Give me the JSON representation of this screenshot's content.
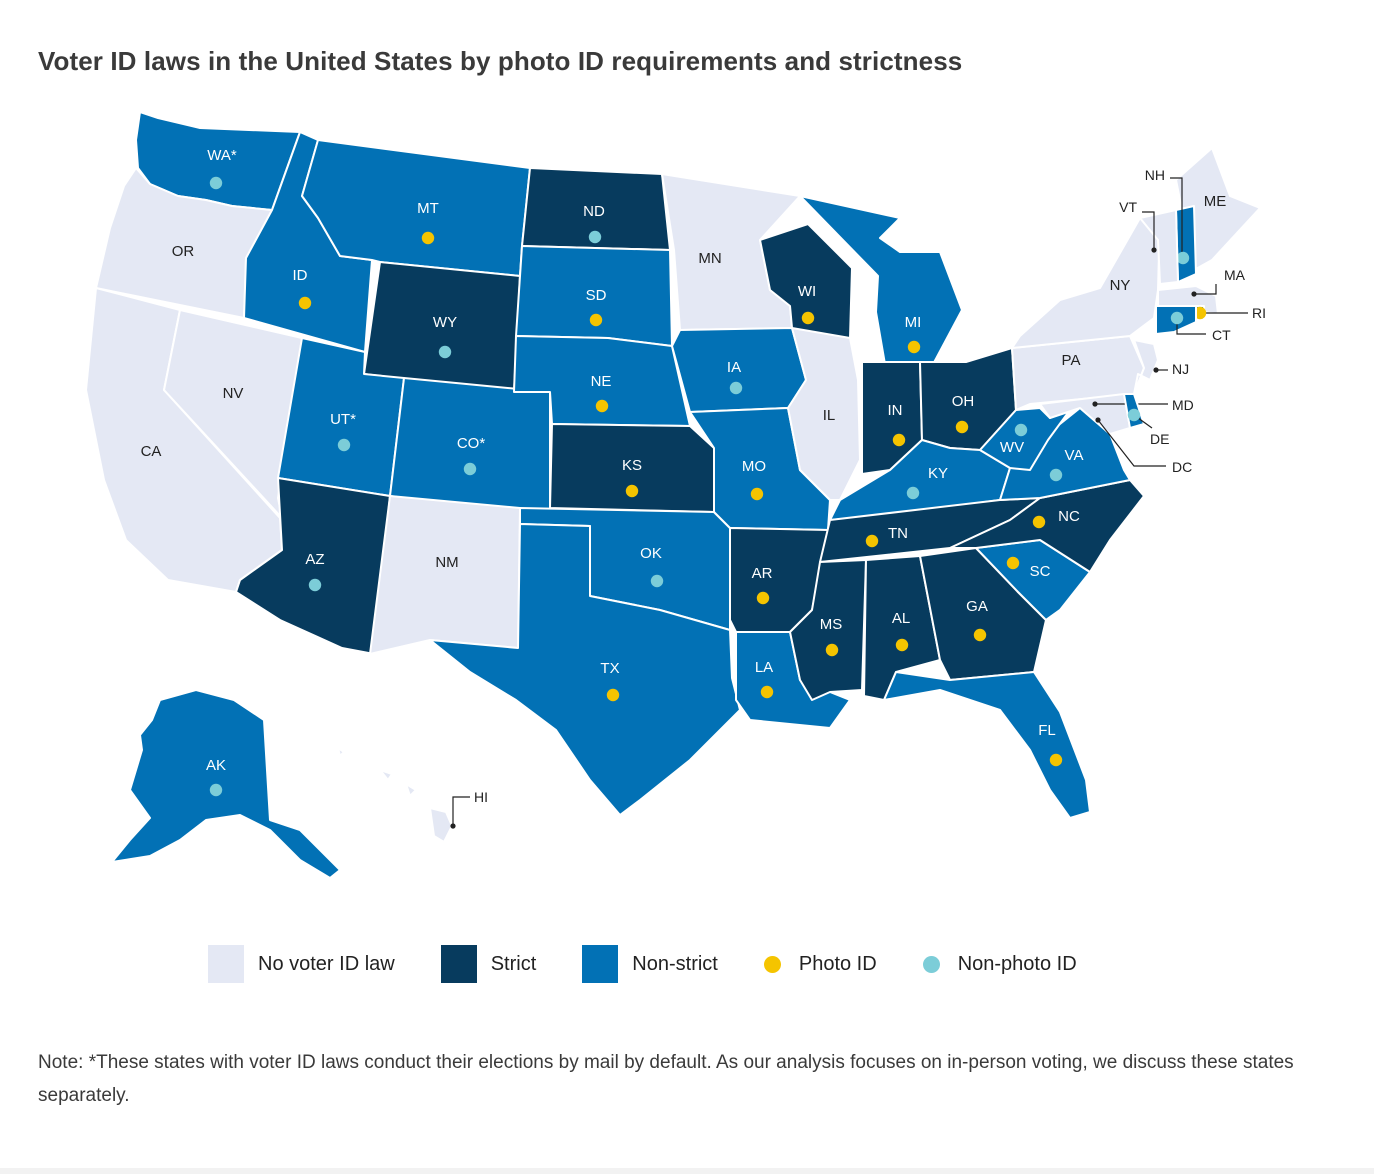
{
  "title": "Voter ID laws in the United States by photo ID requirements and strictness",
  "colors": {
    "none": "#e4e8f4",
    "strict": "#073b5e",
    "nonstrict": "#0271b5",
    "photo": "#f5c400",
    "nonphoto": "#7ccdd8"
  },
  "legend": [
    {
      "label": "No voter ID law",
      "type": "swatch",
      "key": "none"
    },
    {
      "label": "Strict",
      "type": "swatch",
      "key": "strict"
    },
    {
      "label": "Non-strict",
      "type": "swatch",
      "key": "nonstrict"
    },
    {
      "label": "Photo ID",
      "type": "dot",
      "key": "photo"
    },
    {
      "label": "Non-photo ID",
      "type": "dot",
      "key": "nonphoto"
    }
  ],
  "states": [
    {
      "abbr": "WA*",
      "law": "nonstrict",
      "id": "nonphoto"
    },
    {
      "abbr": "OR",
      "law": "none",
      "id": ""
    },
    {
      "abbr": "CA",
      "law": "none",
      "id": ""
    },
    {
      "abbr": "NV",
      "law": "none",
      "id": ""
    },
    {
      "abbr": "ID",
      "law": "nonstrict",
      "id": "photo"
    },
    {
      "abbr": "MT",
      "law": "nonstrict",
      "id": "photo"
    },
    {
      "abbr": "WY",
      "law": "strict",
      "id": "nonphoto"
    },
    {
      "abbr": "UT*",
      "law": "nonstrict",
      "id": "nonphoto"
    },
    {
      "abbr": "AZ",
      "law": "strict",
      "id": "nonphoto"
    },
    {
      "abbr": "CO*",
      "law": "nonstrict",
      "id": "nonphoto"
    },
    {
      "abbr": "NM",
      "law": "none",
      "id": ""
    },
    {
      "abbr": "ND",
      "law": "strict",
      "id": "nonphoto"
    },
    {
      "abbr": "SD",
      "law": "nonstrict",
      "id": "photo"
    },
    {
      "abbr": "NE",
      "law": "nonstrict",
      "id": "photo"
    },
    {
      "abbr": "KS",
      "law": "strict",
      "id": "photo"
    },
    {
      "abbr": "OK",
      "law": "nonstrict",
      "id": "nonphoto"
    },
    {
      "abbr": "TX",
      "law": "nonstrict",
      "id": "photo"
    },
    {
      "abbr": "MN",
      "law": "none",
      "id": ""
    },
    {
      "abbr": "IA",
      "law": "nonstrict",
      "id": "nonphoto"
    },
    {
      "abbr": "MO",
      "law": "nonstrict",
      "id": "photo"
    },
    {
      "abbr": "AR",
      "law": "strict",
      "id": "photo"
    },
    {
      "abbr": "LA",
      "law": "nonstrict",
      "id": "photo"
    },
    {
      "abbr": "WI",
      "law": "strict",
      "id": "photo"
    },
    {
      "abbr": "IL",
      "law": "none",
      "id": ""
    },
    {
      "abbr": "MI",
      "law": "nonstrict",
      "id": "photo"
    },
    {
      "abbr": "IN",
      "law": "strict",
      "id": "photo"
    },
    {
      "abbr": "OH",
      "law": "strict",
      "id": "photo"
    },
    {
      "abbr": "KY",
      "law": "nonstrict",
      "id": "nonphoto"
    },
    {
      "abbr": "TN",
      "law": "strict",
      "id": "photo"
    },
    {
      "abbr": "MS",
      "law": "strict",
      "id": "photo"
    },
    {
      "abbr": "AL",
      "law": "strict",
      "id": "photo"
    },
    {
      "abbr": "GA",
      "law": "strict",
      "id": "photo"
    },
    {
      "abbr": "FL",
      "law": "nonstrict",
      "id": "photo"
    },
    {
      "abbr": "SC",
      "law": "nonstrict",
      "id": "photo"
    },
    {
      "abbr": "NC",
      "law": "strict",
      "id": "photo"
    },
    {
      "abbr": "VA",
      "law": "nonstrict",
      "id": "nonphoto"
    },
    {
      "abbr": "WV",
      "law": "nonstrict",
      "id": "nonphoto"
    },
    {
      "abbr": "PA",
      "law": "none",
      "id": ""
    },
    {
      "abbr": "NY",
      "law": "none",
      "id": ""
    },
    {
      "abbr": "ME",
      "law": "none",
      "id": ""
    },
    {
      "abbr": "AK",
      "law": "nonstrict",
      "id": "nonphoto"
    },
    {
      "abbr": "HI",
      "law": "none",
      "id": ""
    },
    {
      "abbr": "NH",
      "law": "nonstrict",
      "id": "nonphoto"
    },
    {
      "abbr": "VT",
      "law": "none",
      "id": ""
    },
    {
      "abbr": "MA",
      "law": "none",
      "id": ""
    },
    {
      "abbr": "RI",
      "law": "nonstrict",
      "id": "photo"
    },
    {
      "abbr": "CT",
      "law": "nonstrict",
      "id": "nonphoto"
    },
    {
      "abbr": "NJ",
      "law": "none",
      "id": ""
    },
    {
      "abbr": "MD",
      "law": "none",
      "id": ""
    },
    {
      "abbr": "DE",
      "law": "nonstrict",
      "id": "nonphoto"
    },
    {
      "abbr": "DC",
      "law": "none",
      "id": ""
    }
  ],
  "note": "Note: *These states with voter ID laws conduct their elections by mail by default. As our analysis focuses on in-person voting, we discuss these states separately."
}
